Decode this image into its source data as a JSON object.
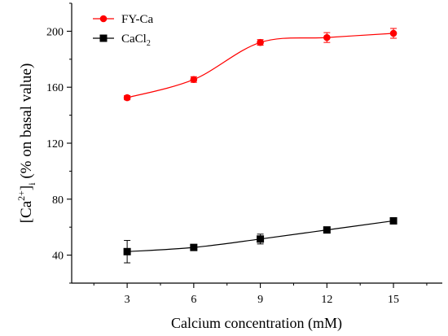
{
  "chart_data": {
    "type": "line",
    "title": "",
    "xlabel": "Calcium concentration (mM)",
    "ylabel": {
      "part1": "[Ca",
      "sup": "2+",
      "part2": "]",
      "sub": "i",
      "part3": " (% on basal value)"
    },
    "xlim": [
      0.5,
      17.2
    ],
    "ylim": [
      20,
      220
    ],
    "xticks": [
      3,
      6,
      9,
      12,
      15
    ],
    "yticks": [
      40,
      80,
      120,
      160,
      200
    ],
    "x_tick_labels": [
      "3",
      "6",
      "9",
      "12",
      "15"
    ],
    "y_tick_labels": [
      "40",
      "80",
      "120",
      "160",
      "200"
    ],
    "grid": false,
    "legend_position": "top-left",
    "x": [
      3,
      6,
      9,
      12,
      15
    ],
    "series": [
      {
        "name": "FY-Ca",
        "marker": "circle",
        "color": "#ff0000",
        "values": [
          152.5,
          165.5,
          192.0,
          195.5,
          198.5
        ],
        "errors": [
          1.5,
          2.0,
          2.0,
          3.5,
          3.5
        ]
      },
      {
        "name": "CaCl",
        "name_sub": "2",
        "marker": "square",
        "color": "#000000",
        "values": [
          42.5,
          45.5,
          51.5,
          58.0,
          64.5
        ],
        "errors": [
          8.0,
          1.0,
          3.5,
          1.5,
          1.5
        ]
      }
    ]
  }
}
